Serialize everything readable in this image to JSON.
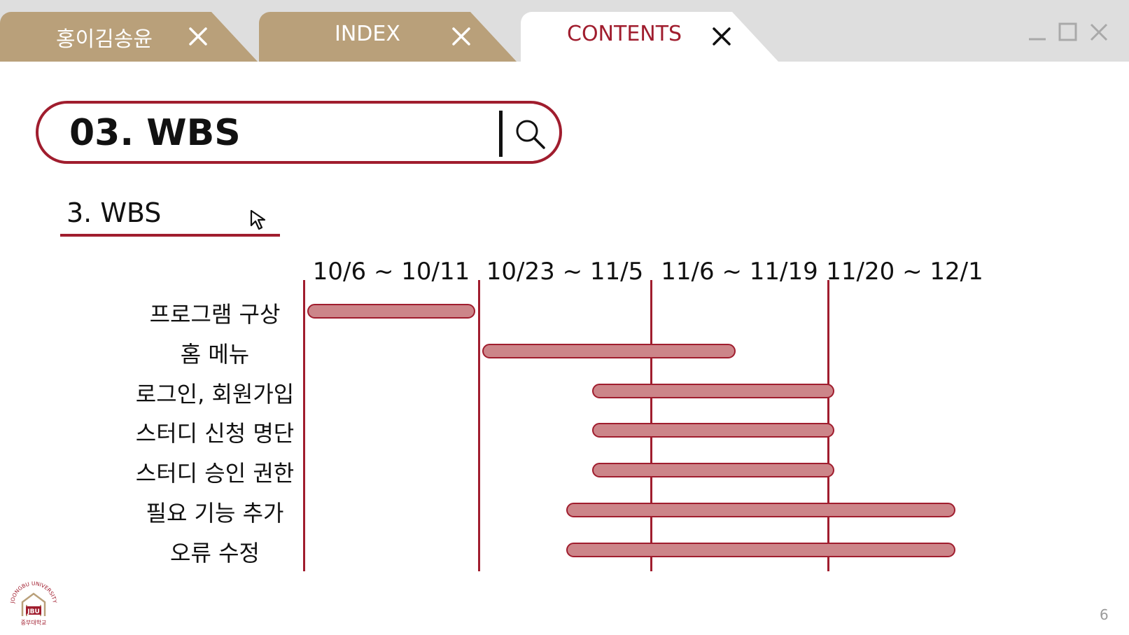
{
  "tabs": [
    {
      "label": "홍이김송윤",
      "active": false
    },
    {
      "label": "INDEX",
      "active": false
    },
    {
      "label": "CONTENTS",
      "active": true
    }
  ],
  "colors": {
    "accent": "#a01d2e",
    "tab_inactive": "#b9a07a",
    "tabbar_bg": "#dedede",
    "bar_fill": "#cc8589"
  },
  "search": {
    "value": "03. WBS"
  },
  "section": {
    "title": "3. WBS"
  },
  "wbs": {
    "periods": [
      "10/6 ~ 10/11",
      "10/23 ~ 11/5",
      "11/6 ~ 11/19",
      "11/20 ~ 12/1"
    ],
    "tasks": [
      {
        "label": "프로그램 구상",
        "start": 0.02,
        "end": 0.98
      },
      {
        "label": "홈 메뉴",
        "start": 1.02,
        "end": 2.48
      },
      {
        "label": "로그인, 회원가입",
        "start": 1.66,
        "end": 3.04
      },
      {
        "label": "스터디 신청 명단",
        "start": 1.66,
        "end": 3.04
      },
      {
        "label": "스터디 승인 권한",
        "start": 1.66,
        "end": 3.04
      },
      {
        "label": "필요 기능 추가",
        "start": 1.51,
        "end": 3.83
      },
      {
        "label": "오류 수정",
        "start": 1.51,
        "end": 3.83
      }
    ]
  },
  "logo": {
    "text": "JOONGBU UNIVERSITY",
    "mark": "JBU",
    "kor": "중부대학교"
  },
  "page_number": "6",
  "icons": [
    "close-icon",
    "minimize-icon",
    "maximize-icon",
    "search-icon",
    "cursor-icon"
  ]
}
